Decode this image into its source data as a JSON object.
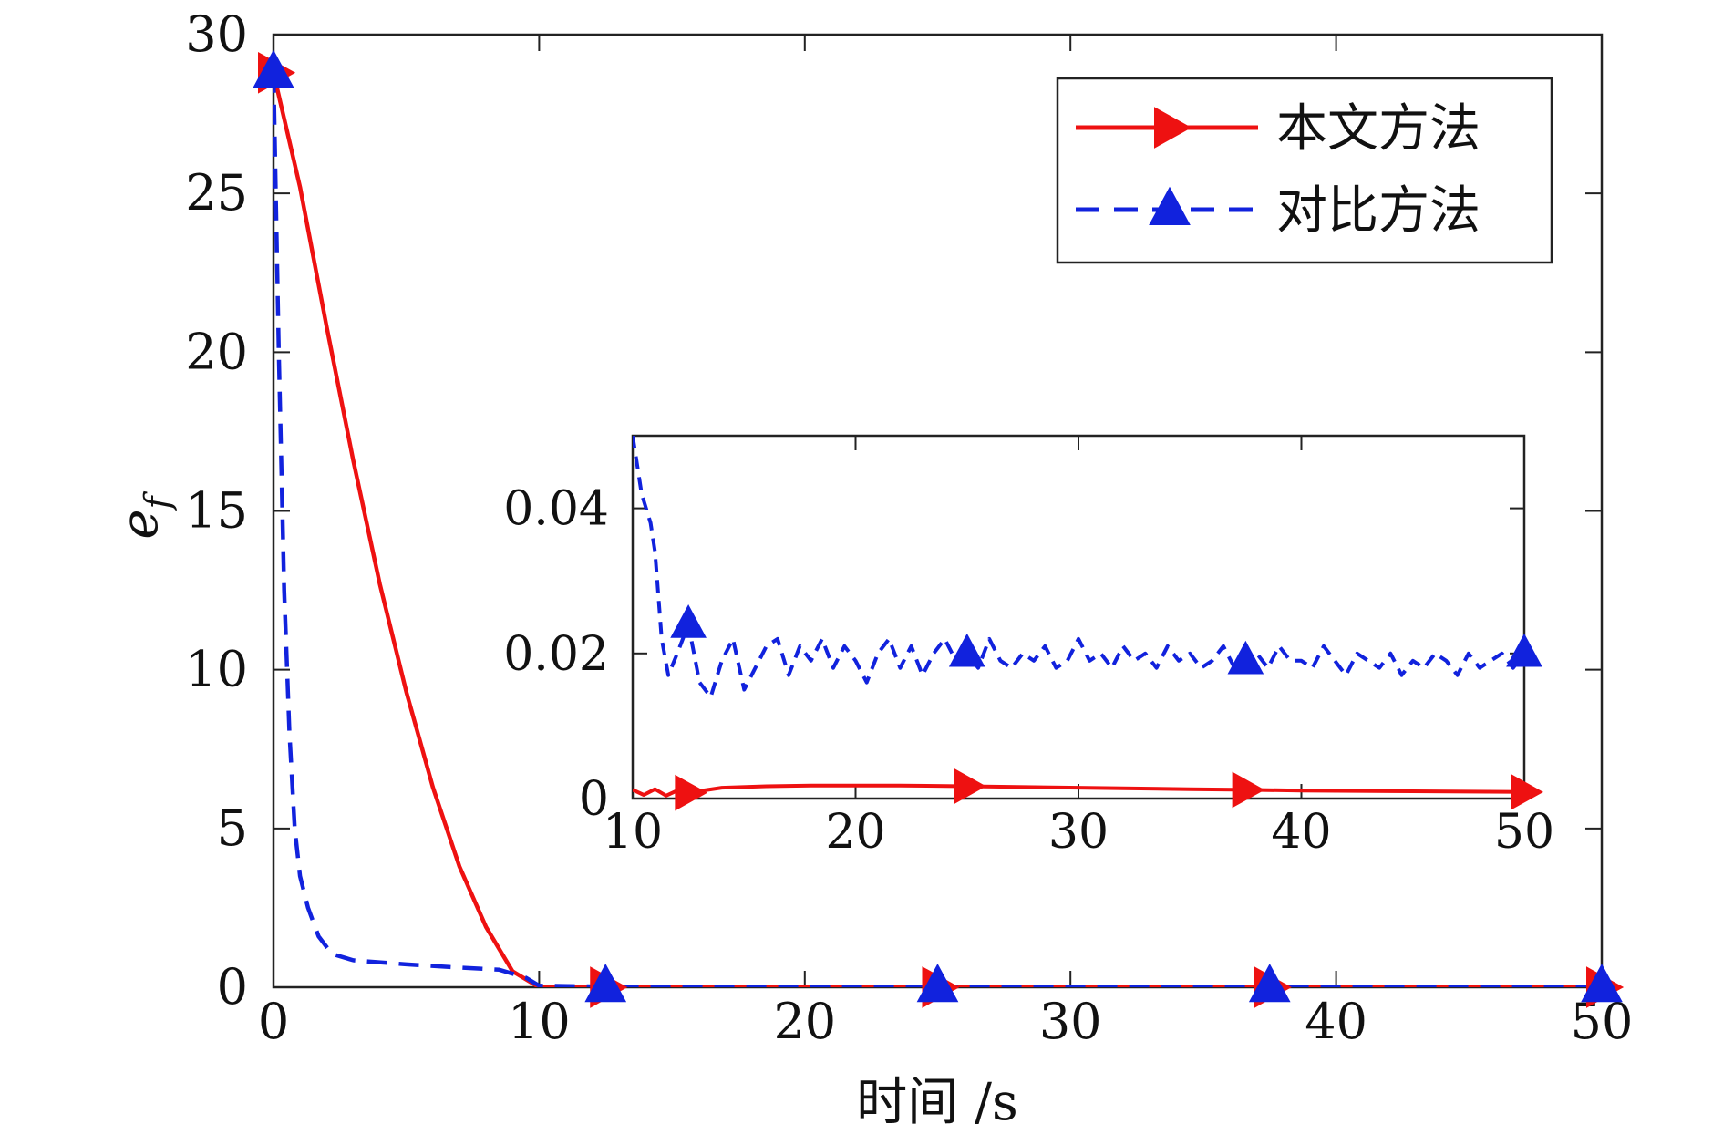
{
  "chart_data": {
    "type": "line",
    "xlabel": "时间 /s",
    "ylabel": "e",
    "ylabel_subscript": "f",
    "xlim": [
      0,
      50
    ],
    "ylim": [
      0,
      30
    ],
    "xticks": [
      0,
      10,
      20,
      30,
      40,
      50
    ],
    "yticks": [
      0,
      5,
      10,
      15,
      20,
      25,
      30
    ],
    "grid": false,
    "legend_position": "top-right",
    "series": [
      {
        "name": "本文方法",
        "color": "#ee1111",
        "line_style": "solid",
        "marker": "right-triangle",
        "x": [
          0,
          1,
          2,
          3,
          4,
          5,
          6,
          7,
          8,
          9,
          10,
          12.5,
          20,
          25,
          30,
          37.5,
          40,
          50
        ],
        "y": [
          28.8,
          25.2,
          20.8,
          16.6,
          12.7,
          9.3,
          6.3,
          3.8,
          1.9,
          0.5,
          0.0,
          0.0,
          0.0,
          0.0,
          0.0,
          0.0,
          0.0,
          0.0
        ],
        "marker_x": [
          0,
          12.5,
          25,
          37.5,
          50
        ]
      },
      {
        "name": "对比方法",
        "color": "#1122dd",
        "line_style": "dashed",
        "marker": "up-triangle",
        "x": [
          0,
          0.2,
          0.4,
          0.6,
          0.8,
          1.0,
          1.3,
          1.7,
          2.2,
          3,
          5,
          7,
          8.5,
          9.5,
          10,
          12.5,
          20,
          25,
          30,
          37.5,
          40,
          50
        ],
        "y": [
          28.8,
          20,
          12.5,
          8.0,
          5.0,
          3.5,
          2.5,
          1.6,
          1.05,
          0.85,
          0.72,
          0.62,
          0.55,
          0.3,
          0.05,
          0.02,
          0.02,
          0.02,
          0.02,
          0.02,
          0.02,
          0.02
        ],
        "marker_x": [
          0,
          12.5,
          25,
          37.5,
          50
        ]
      }
    ],
    "inset": {
      "xlim": [
        10,
        50
      ],
      "ylim": [
        0,
        0.05
      ],
      "xticks": [
        10,
        20,
        30,
        40,
        50
      ],
      "yticks": [
        0,
        0.02,
        0.04
      ],
      "ytick_labels": [
        "0",
        "0.02",
        "0.04"
      ],
      "series": [
        {
          "name": "本文方法",
          "color": "#ee1111",
          "line_style": "solid",
          "marker": "right-triangle",
          "x": [
            10,
            10.5,
            11,
            11.5,
            12,
            12.5,
            14,
            16,
            18,
            20,
            22,
            25,
            30,
            35,
            37.5,
            40,
            45,
            50
          ],
          "y": [
            0.0012,
            0.0005,
            0.0013,
            0.0004,
            0.0011,
            0.0008,
            0.0015,
            0.0017,
            0.0018,
            0.0018,
            0.0018,
            0.0017,
            0.0015,
            0.0013,
            0.0012,
            0.0011,
            0.001,
            0.0009
          ],
          "marker_x": [
            12.5,
            25,
            37.5,
            50
          ]
        },
        {
          "name": "对比方法",
          "color": "#1122dd",
          "line_style": "dashed",
          "marker": "up-triangle",
          "x": [
            10,
            10.2,
            10.4,
            10.6,
            10.8,
            11.0,
            11.3,
            11.6,
            12.0,
            12.5,
            13.0,
            13.5,
            14.0,
            14.5,
            15.0,
            15.5,
            16.0,
            16.5,
            17.0,
            17.5,
            18.0,
            18.5,
            19.0,
            19.5,
            20.0,
            20.5,
            21.0,
            21.5,
            22.0,
            22.5,
            23.0,
            23.5,
            24.0,
            24.5,
            25.0,
            25.5,
            26.0,
            26.5,
            27.0,
            27.5,
            28.0,
            28.5,
            29.0,
            29.5,
            30.0,
            30.5,
            31.0,
            31.5,
            32.0,
            32.5,
            33.0,
            33.5,
            34.0,
            34.5,
            35.0,
            35.5,
            36.0,
            36.5,
            37.0,
            37.5,
            38.0,
            38.5,
            39.0,
            39.5,
            40.0,
            40.5,
            41.0,
            41.5,
            42.0,
            42.5,
            43.0,
            43.5,
            44.0,
            44.5,
            45.0,
            45.5,
            46.0,
            46.5,
            47.0,
            47.5,
            48.0,
            48.5,
            49.0,
            49.5,
            50.0
          ],
          "y": [
            0.05,
            0.046,
            0.042,
            0.04,
            0.038,
            0.034,
            0.022,
            0.017,
            0.02,
            0.024,
            0.016,
            0.014,
            0.019,
            0.022,
            0.015,
            0.018,
            0.021,
            0.022,
            0.017,
            0.021,
            0.019,
            0.022,
            0.018,
            0.021,
            0.019,
            0.016,
            0.02,
            0.022,
            0.018,
            0.021,
            0.017,
            0.02,
            0.022,
            0.019,
            0.02,
            0.018,
            0.022,
            0.019,
            0.018,
            0.02,
            0.019,
            0.021,
            0.018,
            0.019,
            0.022,
            0.019,
            0.02,
            0.018,
            0.021,
            0.019,
            0.02,
            0.018,
            0.021,
            0.019,
            0.02,
            0.018,
            0.019,
            0.021,
            0.018,
            0.019,
            0.02,
            0.018,
            0.021,
            0.019,
            0.019,
            0.018,
            0.021,
            0.019,
            0.017,
            0.02,
            0.019,
            0.018,
            0.02,
            0.017,
            0.019,
            0.018,
            0.02,
            0.019,
            0.017,
            0.02,
            0.018,
            0.019,
            0.02,
            0.018,
            0.02
          ],
          "marker_x": [
            12.5,
            25,
            37.5,
            50
          ]
        }
      ]
    }
  }
}
